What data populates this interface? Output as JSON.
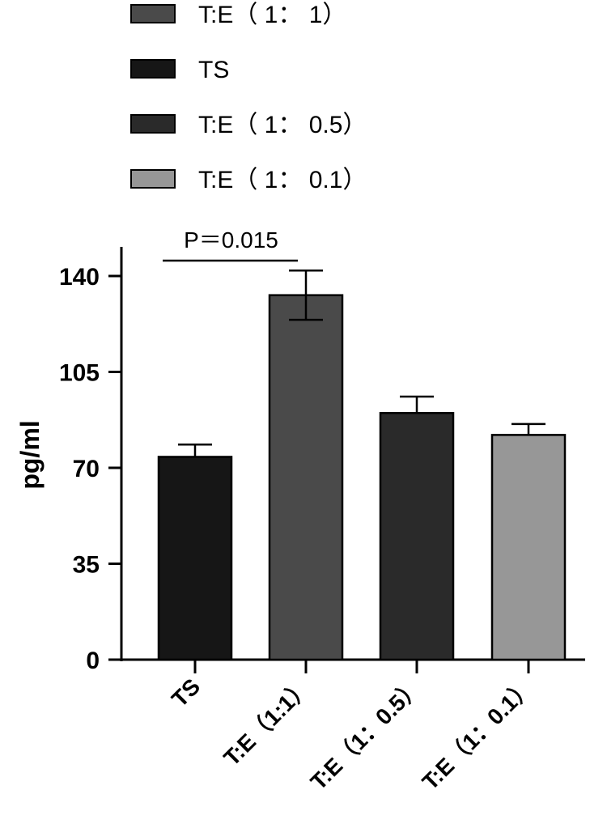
{
  "chart_data": {
    "type": "bar",
    "categories": [
      "TS",
      "T:E（1:1）",
      "T:E（1：0.5）",
      "T:E（1：0.1）"
    ],
    "values": [
      74,
      133,
      90,
      82
    ],
    "error_bars": [
      4.5,
      9,
      6,
      4
    ],
    "ylabel": "pg/ml",
    "ylim": [
      0,
      150
    ],
    "yticks": [
      0,
      35,
      70,
      105,
      140
    ],
    "legend": [
      {
        "label": "T:E（ 1： 1）",
        "color": "#4a4a4a"
      },
      {
        "label": "TS",
        "color": "#161616"
      },
      {
        "label": "T:E（ 1： 0.5）",
        "color": "#2a2a2a"
      },
      {
        "label": "T:E（ 1： 0.1）",
        "color": "#979797"
      }
    ],
    "bar_colors": [
      "#161616",
      "#4a4a4a",
      "#2a2a2a",
      "#979797"
    ],
    "annotation": {
      "text": "P＝0.015",
      "from": 0,
      "to": 1
    },
    "legend_position": "top"
  }
}
